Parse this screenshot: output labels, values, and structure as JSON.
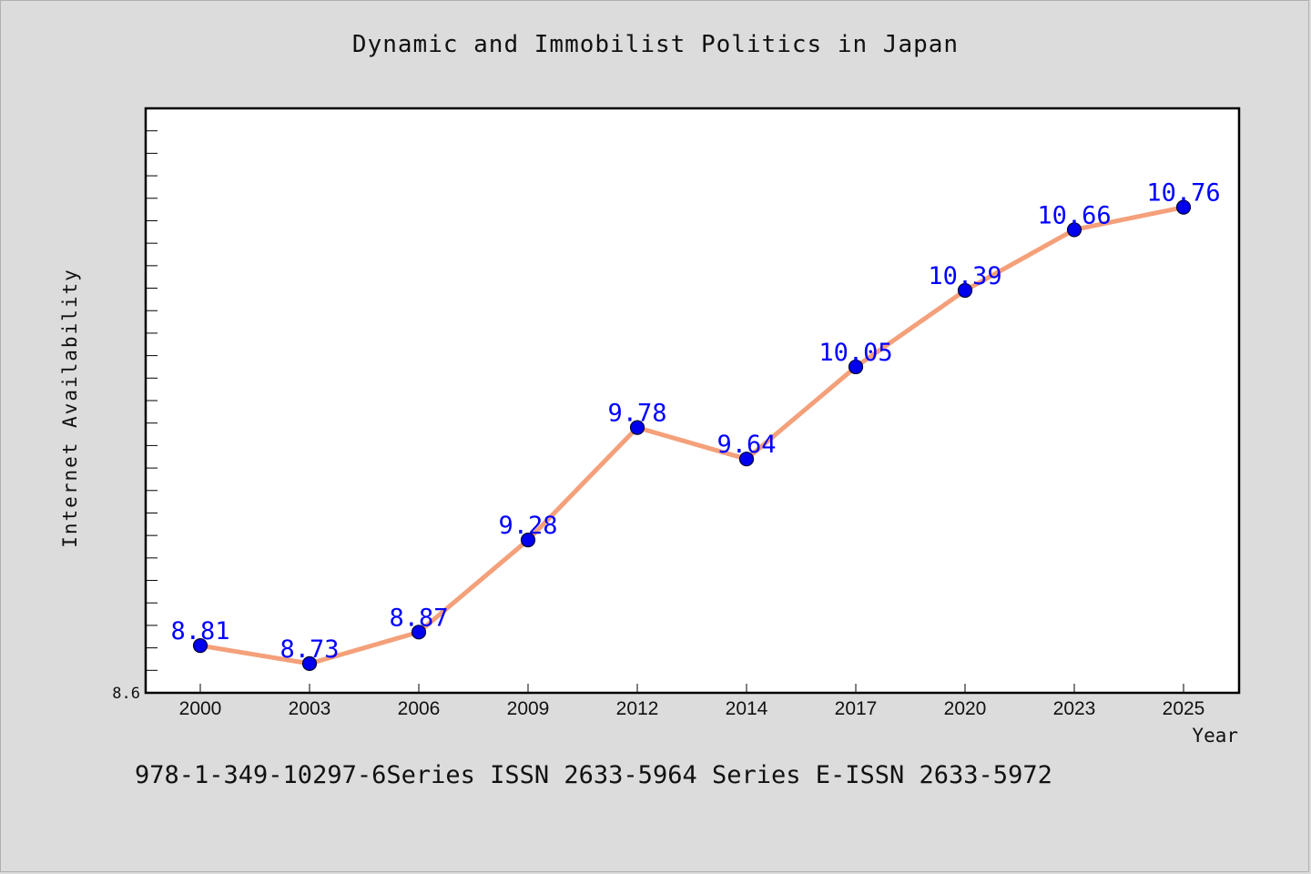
{
  "chart_data": {
    "type": "line",
    "title": "Dynamic and Immobilist Politics in Japan",
    "xlabel": "Year",
    "ylabel": "Internet Availability",
    "categories": [
      "2000",
      "2003",
      "2006",
      "2009",
      "2012",
      "2014",
      "2017",
      "2020",
      "2023",
      "2025"
    ],
    "series": [
      {
        "values": [
          8.81,
          8.73,
          8.87,
          9.28,
          9.78,
          9.64,
          10.05,
          10.39,
          10.66,
          10.76
        ]
      }
    ],
    "data_labels": [
      "8.81",
      "8.73",
      "8.87",
      "9.28",
      "9.78",
      "9.64",
      "10.05",
      "10.39",
      "10.66",
      "10.76"
    ],
    "ylim": [
      8.6,
      11.2
    ],
    "y_tick_labels": [
      "8.6"
    ],
    "y_minor_tick_step": 0.1,
    "grid": false,
    "legend": "none",
    "colors": {
      "line": "#f4a07a",
      "marker": "#0000ee",
      "marker_edge": "#000033",
      "data_label": "#0000ff",
      "plot_background": "#ffffff",
      "figure_background": "#dcdcdc"
    }
  },
  "footer_note": "978-1-349-10297-6Series ISSN 2633-5964 Series E-ISSN 2633-5972"
}
